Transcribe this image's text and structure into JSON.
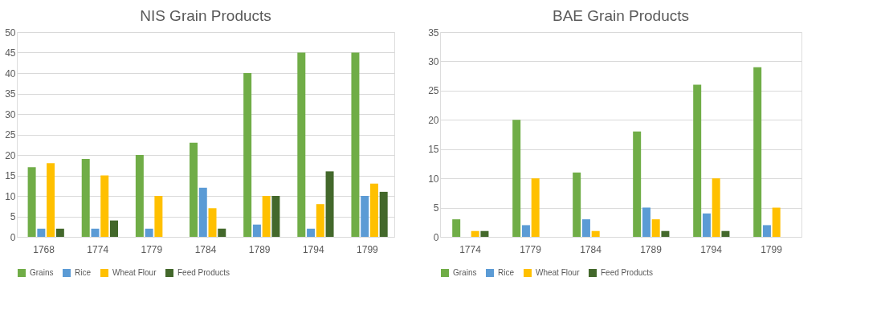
{
  "chart_data": [
    {
      "type": "bar",
      "title": "NIS Grain Products",
      "categories": [
        "1768",
        "1774",
        "1779",
        "1784",
        "1789",
        "1794",
        "1799"
      ],
      "series": [
        {
          "name": "Grains",
          "color": "#70ad47",
          "values": [
            17,
            19,
            20,
            23,
            40,
            45,
            45
          ]
        },
        {
          "name": "Rice",
          "color": "#5b9bd5",
          "values": [
            2,
            2,
            2,
            12,
            3,
            2,
            10
          ]
        },
        {
          "name": "Wheat Flour",
          "color": "#ffc000",
          "values": [
            18,
            15,
            10,
            7,
            10,
            8,
            13
          ]
        },
        {
          "name": "Feed Products",
          "color": "#43682b",
          "values": [
            2,
            4,
            null,
            2,
            10,
            16,
            11
          ]
        }
      ],
      "ylim": [
        0,
        50
      ],
      "yticks": [
        0,
        5,
        10,
        15,
        20,
        25,
        30,
        35,
        40,
        45,
        50
      ],
      "grid": "y",
      "legend": "bottom"
    },
    {
      "type": "bar",
      "title": "BAE Grain Products",
      "categories": [
        "1774",
        "1779",
        "1784",
        "1789",
        "1794",
        "1799"
      ],
      "series": [
        {
          "name": "Grains",
          "color": "#70ad47",
          "values": [
            3,
            20,
            11,
            18,
            26,
            29
          ]
        },
        {
          "name": "Rice",
          "color": "#5b9bd5",
          "values": [
            null,
            2,
            3,
            5,
            4,
            2
          ]
        },
        {
          "name": "Wheat Flour",
          "color": "#ffc000",
          "values": [
            1,
            10,
            1,
            3,
            10,
            5
          ]
        },
        {
          "name": "Feed Products",
          "color": "#43682b",
          "values": [
            1,
            null,
            null,
            1,
            1,
            null
          ]
        }
      ],
      "ylim": [
        0,
        35
      ],
      "yticks": [
        0,
        5,
        10,
        15,
        20,
        25,
        30,
        35
      ],
      "grid": "y",
      "legend": "bottom"
    }
  ]
}
